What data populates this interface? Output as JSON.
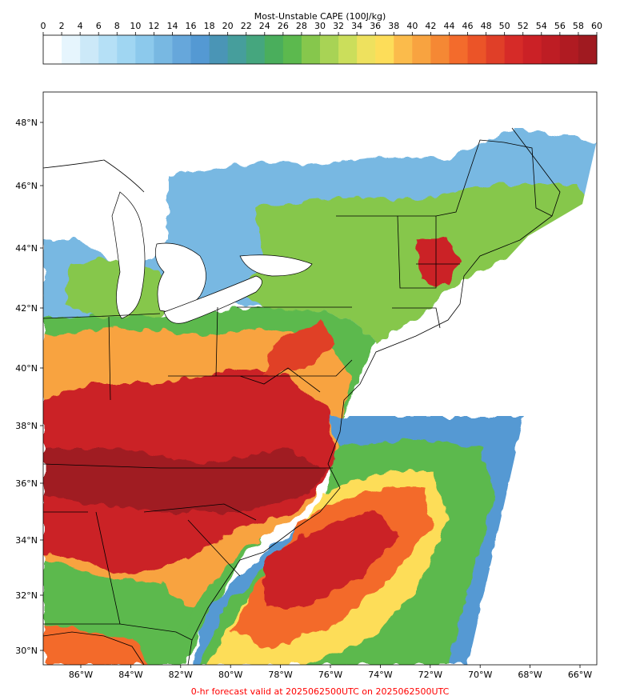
{
  "colorbar": {
    "title": "Most-Unstable CAPE (100J/kg)",
    "ticks": [
      "0",
      "2",
      "4",
      "6",
      "8",
      "10",
      "12",
      "14",
      "16",
      "18",
      "20",
      "22",
      "24",
      "26",
      "28",
      "30",
      "32",
      "34",
      "36",
      "38",
      "40",
      "42",
      "44",
      "46",
      "48",
      "50",
      "52",
      "54",
      "56",
      "58",
      "60"
    ],
    "colors": [
      "#ffffff",
      "#e6f5fd",
      "#cce9f8",
      "#b5e0f6",
      "#a0d6f2",
      "#8cc9ec",
      "#78b8e2",
      "#66a7db",
      "#5499d3",
      "#4a95b6",
      "#469e9c",
      "#45a67e",
      "#4aae5c",
      "#5cb94e",
      "#86c74c",
      "#a8d355",
      "#cbde5b",
      "#eee15e",
      "#fddd59",
      "#fbbb4b",
      "#f8a340",
      "#f58834",
      "#f36b2c",
      "#eb5428",
      "#e03f28",
      "#d62b28",
      "#cb2126",
      "#be1d24",
      "#b01b22",
      "#a01a20"
    ]
  },
  "map": {
    "lon_ticks": [
      "86°W",
      "84°W",
      "82°W",
      "80°W",
      "78°W",
      "76°W",
      "74°W",
      "72°W",
      "70°W",
      "68°W",
      "66°W"
    ],
    "lat_ticks": [
      "30°N",
      "32°N",
      "34°N",
      "36°N",
      "38°N",
      "40°N",
      "42°N",
      "44°N",
      "46°N",
      "48°N"
    ]
  },
  "footer": {
    "text": "0-hr forecast valid at 2025062500UTC on 2025062500UTC",
    "color": "#ff0000"
  }
}
